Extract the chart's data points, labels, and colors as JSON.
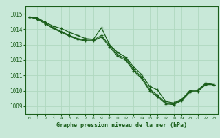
{
  "title": "Graphe pression niveau de la mer (hPa)",
  "bg_color": "#c8e8d8",
  "line_color": "#1a5e1a",
  "marker_color": "#1a5e1a",
  "grid_color": "#b0d8c0",
  "xlim": [
    -0.5,
    23.5
  ],
  "ylim": [
    1008.5,
    1015.5
  ],
  "yticks": [
    1009,
    1010,
    1011,
    1012,
    1013,
    1014,
    1015
  ],
  "xticks": [
    0,
    1,
    2,
    3,
    4,
    5,
    6,
    7,
    8,
    9,
    10,
    11,
    12,
    13,
    14,
    15,
    16,
    17,
    18,
    19,
    20,
    21,
    22,
    23
  ],
  "series1": [
    [
      0,
      1014.8
    ],
    [
      1,
      1014.75
    ],
    [
      2,
      1014.45
    ],
    [
      3,
      1014.2
    ],
    [
      4,
      1014.05
    ],
    [
      5,
      1013.8
    ],
    [
      6,
      1013.6
    ],
    [
      7,
      1013.4
    ],
    [
      8,
      1013.35
    ],
    [
      9,
      1014.1
    ],
    [
      10,
      1013.0
    ],
    [
      11,
      1012.5
    ],
    [
      12,
      1012.2
    ],
    [
      13,
      1011.55
    ],
    [
      14,
      1011.05
    ],
    [
      15,
      1010.3
    ],
    [
      16,
      1010.05
    ],
    [
      17,
      1009.3
    ],
    [
      18,
      1009.2
    ],
    [
      19,
      1009.45
    ],
    [
      20,
      1010.0
    ],
    [
      21,
      1010.05
    ],
    [
      22,
      1010.5
    ],
    [
      23,
      1010.4
    ]
  ],
  "series2": [
    [
      0,
      1014.8
    ],
    [
      1,
      1014.7
    ],
    [
      2,
      1014.4
    ],
    [
      3,
      1014.1
    ],
    [
      4,
      1013.85
    ],
    [
      5,
      1013.6
    ],
    [
      6,
      1013.4
    ],
    [
      7,
      1013.3
    ],
    [
      8,
      1013.3
    ],
    [
      9,
      1013.6
    ],
    [
      10,
      1012.95
    ],
    [
      11,
      1012.35
    ],
    [
      12,
      1012.1
    ],
    [
      13,
      1011.4
    ],
    [
      14,
      1010.9
    ],
    [
      15,
      1010.1
    ],
    [
      16,
      1009.7
    ],
    [
      17,
      1009.2
    ],
    [
      18,
      1009.15
    ],
    [
      19,
      1009.4
    ],
    [
      20,
      1009.95
    ],
    [
      21,
      1010.0
    ],
    [
      22,
      1010.45
    ],
    [
      23,
      1010.4
    ]
  ],
  "series3": [
    [
      0,
      1014.8
    ],
    [
      1,
      1014.65
    ],
    [
      2,
      1014.35
    ],
    [
      3,
      1014.05
    ],
    [
      4,
      1013.8
    ],
    [
      5,
      1013.55
    ],
    [
      6,
      1013.35
    ],
    [
      7,
      1013.25
    ],
    [
      8,
      1013.25
    ],
    [
      9,
      1013.5
    ],
    [
      10,
      1012.85
    ],
    [
      11,
      1012.25
    ],
    [
      12,
      1012.0
    ],
    [
      13,
      1011.3
    ],
    [
      14,
      1010.8
    ],
    [
      15,
      1010.0
    ],
    [
      16,
      1009.6
    ],
    [
      17,
      1009.15
    ],
    [
      18,
      1009.1
    ],
    [
      19,
      1009.35
    ],
    [
      20,
      1009.9
    ],
    [
      21,
      1009.95
    ],
    [
      22,
      1010.4
    ],
    [
      23,
      1010.4
    ]
  ]
}
